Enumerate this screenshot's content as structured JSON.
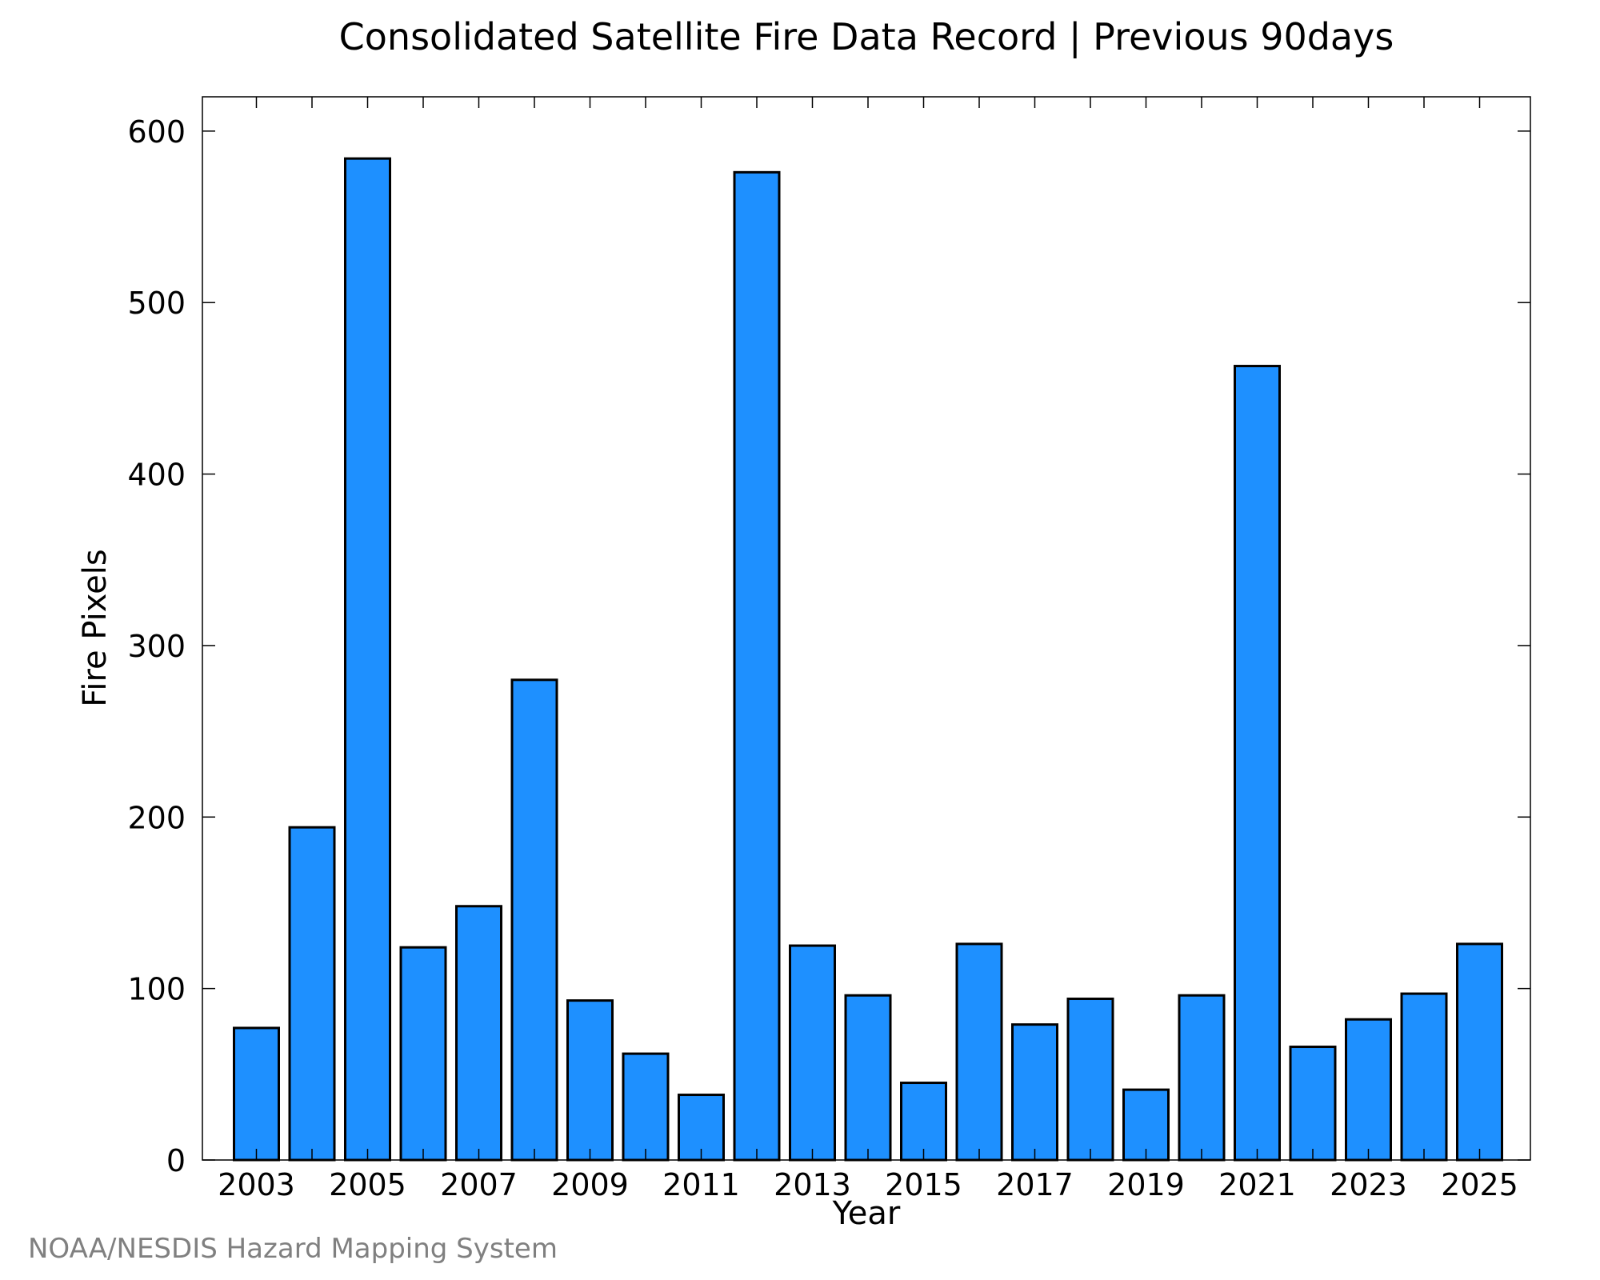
{
  "chart_data": {
    "type": "bar",
    "title": "Consolidated Satellite Fire Data Record | Previous 90days",
    "xlabel": "Year",
    "ylabel": "Fire Pixels",
    "categories": [
      "2003",
      "2004",
      "2005",
      "2006",
      "2007",
      "2008",
      "2009",
      "2010",
      "2011",
      "2012",
      "2013",
      "2014",
      "2015",
      "2016",
      "2017",
      "2018",
      "2019",
      "2020",
      "2021",
      "2022",
      "2023",
      "2024",
      "2025"
    ],
    "values": [
      77,
      194,
      584,
      124,
      148,
      280,
      93,
      62,
      38,
      576,
      125,
      96,
      45,
      126,
      79,
      94,
      41,
      96,
      463,
      66,
      82,
      97,
      126
    ],
    "x_tick_labels": [
      "2003",
      "2005",
      "2007",
      "2009",
      "2011",
      "2013",
      "2015",
      "2017",
      "2019",
      "2021",
      "2023",
      "2025"
    ],
    "y_tick_labels": [
      "0",
      "100",
      "200",
      "300",
      "400",
      "500",
      "600"
    ],
    "ylim": [
      0,
      620
    ],
    "grid": false,
    "bar_color": "#1e90ff",
    "bar_edge_color": "#000000"
  },
  "credit": "NOAA/NESDIS Hazard Mapping System"
}
